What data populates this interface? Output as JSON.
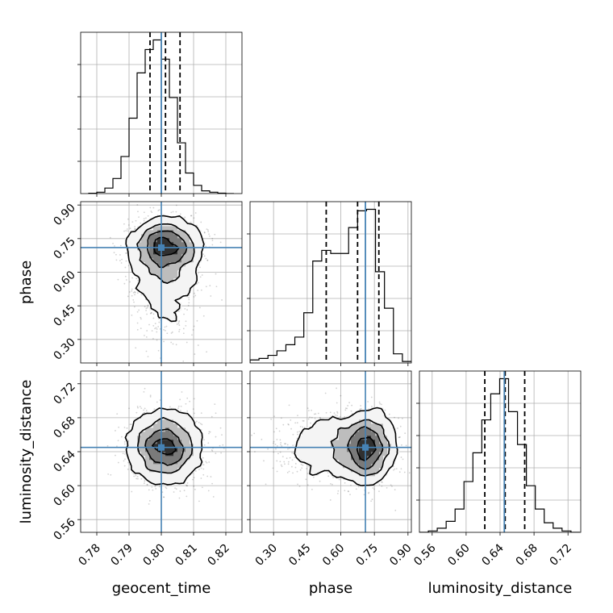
{
  "chart_data": {
    "type": "corner",
    "parameters": [
      "geocent_time",
      "phase",
      "luminosity_distance"
    ],
    "grid": true,
    "truth_color": "#4682b4",
    "truths": {
      "geocent_time": 0.8,
      "phase": 0.71,
      "luminosity_distance": 0.645
    },
    "ranges": {
      "geocent_time": [
        0.775,
        0.825
      ],
      "phase": [
        0.195,
        0.915
      ],
      "luminosity_distance": [
        0.545,
        0.735
      ]
    },
    "ticks": {
      "geocent_time": [
        0.78,
        0.79,
        0.8,
        0.81,
        0.82
      ],
      "phase": [
        0.3,
        0.45,
        0.6,
        0.75,
        0.9
      ],
      "luminosity_distance": [
        0.56,
        0.6,
        0.64,
        0.68,
        0.72
      ]
    },
    "tick_labels": {
      "geocent_time": [
        "0.78",
        "0.79",
        "0.80",
        "0.81",
        "0.82"
      ],
      "phase": [
        "0.30",
        "0.45",
        "0.60",
        "0.75",
        "0.90"
      ],
      "luminosity_distance": [
        "0.56",
        "0.60",
        "0.64",
        "0.68",
        "0.72"
      ]
    },
    "quantiles": {
      "geocent_time": [
        0.7965,
        0.8013,
        0.8058
      ],
      "phase": [
        0.535,
        0.675,
        0.77
      ],
      "luminosity_distance": [
        0.622,
        0.646,
        0.669
      ]
    },
    "histograms": {
      "geocent_time": {
        "edges": [
          0.7775,
          0.78,
          0.7825,
          0.785,
          0.7875,
          0.79,
          0.7925,
          0.795,
          0.7975,
          0.8,
          0.8025,
          0.805,
          0.8075,
          0.81,
          0.8125,
          0.815,
          0.8175,
          0.82,
          0.8225
        ],
        "counts": [
          0.2,
          1,
          4,
          11,
          27,
          55,
          88,
          105,
          112,
          98,
          70,
          37,
          15,
          6,
          2,
          1,
          0.3,
          0
        ]
      },
      "phase": {
        "edges": [
          0.195,
          0.235,
          0.275,
          0.315,
          0.355,
          0.395,
          0.435,
          0.475,
          0.515,
          0.555,
          0.595,
          0.635,
          0.675,
          0.715,
          0.755,
          0.795,
          0.835,
          0.875,
          0.915
        ],
        "counts": [
          2,
          3,
          5,
          8,
          12,
          17,
          33,
          67,
          74,
          72,
          72,
          89,
          100,
          101,
          60,
          36,
          6,
          1
        ]
      },
      "luminosity_distance": {
        "edges": [
          0.545,
          0.5555,
          0.566,
          0.5765,
          0.587,
          0.5975,
          0.608,
          0.6185,
          0.629,
          0.6395,
          0.65,
          0.6605,
          0.671,
          0.6815,
          0.692,
          0.7025,
          0.713,
          0.7235,
          0.734
        ],
        "counts": [
          0,
          1,
          3,
          8,
          17,
          37,
          58,
          82,
          101,
          112,
          88,
          64,
          34,
          17,
          7,
          3,
          1,
          0
        ]
      }
    },
    "contour_levels": [
      0.5,
      1.0,
      1.5,
      2.0
    ],
    "axis_labels": {
      "x": [
        "geocent_time",
        "phase",
        "luminosity_distance"
      ],
      "y": [
        "",
        "phase",
        "luminosity_distance"
      ]
    }
  }
}
